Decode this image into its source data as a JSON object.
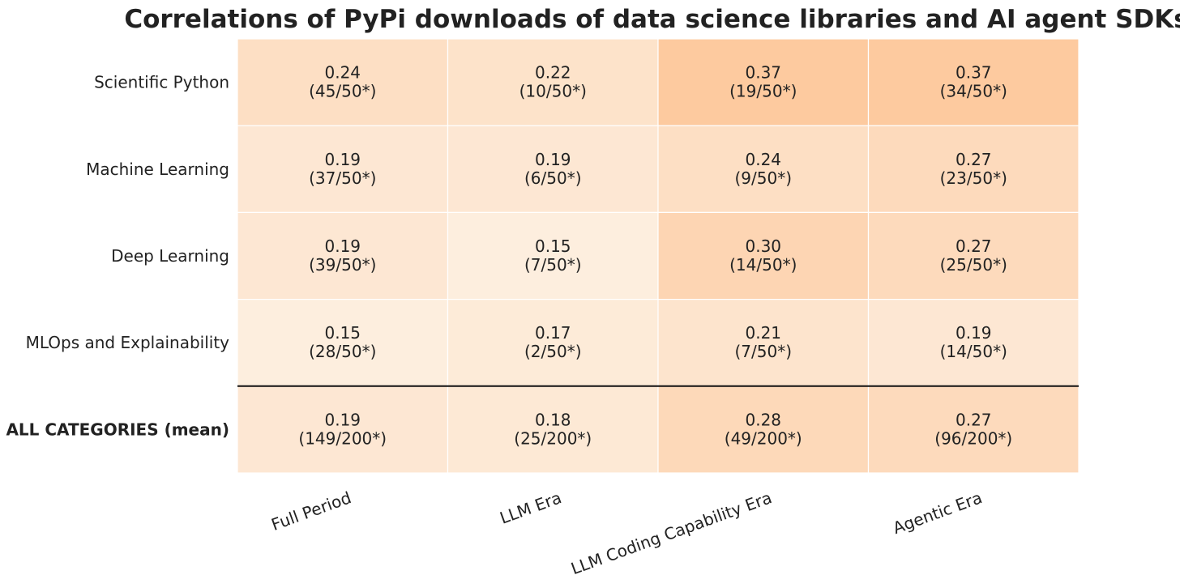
{
  "chart_data": {
    "type": "heatmap",
    "title": "Correlations of PyPi downloads of data science libraries and AI agent SDKs",
    "xlabel": "",
    "ylabel": "",
    "x_categories": [
      "Full Period",
      "LLM Era",
      "LLM Coding Capability Era",
      "Agentic Era"
    ],
    "y_categories": [
      "Scientific Python",
      "Machine Learning",
      "Deep Learning",
      "MLOps and Explainability",
      "ALL CATEGORIES (mean)"
    ],
    "values": [
      [
        0.24,
        0.22,
        0.37,
        0.37
      ],
      [
        0.19,
        0.19,
        0.24,
        0.27
      ],
      [
        0.19,
        0.15,
        0.3,
        0.27
      ],
      [
        0.15,
        0.17,
        0.21,
        0.19
      ],
      [
        0.19,
        0.18,
        0.28,
        0.27
      ]
    ],
    "value_labels": [
      [
        "0.24",
        "0.22",
        "0.37",
        "0.37"
      ],
      [
        "0.19",
        "0.19",
        "0.24",
        "0.27"
      ],
      [
        "0.19",
        "0.15",
        "0.30",
        "0.27"
      ],
      [
        "0.15",
        "0.17",
        "0.21",
        "0.19"
      ],
      [
        "0.19",
        "0.18",
        "0.28",
        "0.27"
      ]
    ],
    "count_labels": [
      [
        "(45/50*)",
        "(10/50*)",
        "(19/50*)",
        "(34/50*)"
      ],
      [
        "(37/50*)",
        "(6/50*)",
        "(9/50*)",
        "(23/50*)"
      ],
      [
        "(39/50*)",
        "(7/50*)",
        "(14/50*)",
        "(25/50*)"
      ],
      [
        "(28/50*)",
        "(2/50*)",
        "(7/50*)",
        "(14/50*)"
      ],
      [
        "(149/200*)",
        "(25/200*)",
        "(49/200*)",
        "(96/200*)"
      ]
    ],
    "color_scale": {
      "low_color": "#fdeede",
      "high_color": "#fdca9f",
      "domain": [
        0.15,
        0.37
      ]
    },
    "summary_row_separator": true,
    "grid": false,
    "legend": "none"
  }
}
